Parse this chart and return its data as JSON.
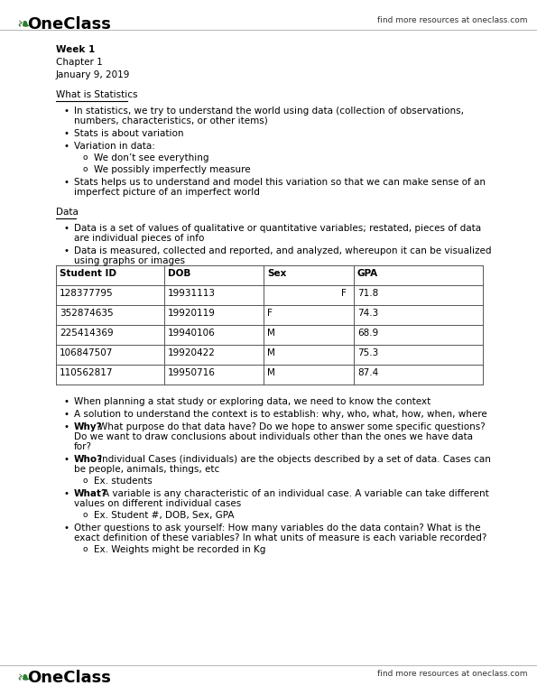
{
  "bg_color": "#ffffff",
  "header_logo_text": "OneClass",
  "header_right_text": "find more resources at oneclass.com",
  "footer_logo_text": "OneClass",
  "footer_right_text": "find more resources at oneclass.com",
  "logo_color": "#2e7d32",
  "body_text_color": "#000000",
  "week_line": "Week 1",
  "chapter_line": "Chapter 1",
  "date_line": "January 9, 2019",
  "section1_title": "What is Statistics",
  "section2_title": "Data",
  "table_headers": [
    "Student ID",
    "DOB",
    "Sex",
    "GPA"
  ],
  "table_rows": [
    [
      "128377795",
      "19931113",
      "F",
      "71.8"
    ],
    [
      "352874635",
      "19920119",
      "F",
      "74.3"
    ],
    [
      "225414369",
      "19940106",
      "M",
      "68.9"
    ],
    [
      "106847507",
      "19920422",
      "M",
      "75.3"
    ],
    [
      "110562817",
      "19950716",
      "M",
      "87.4"
    ]
  ],
  "font_size_body": 7.5,
  "font_size_logo": 13
}
